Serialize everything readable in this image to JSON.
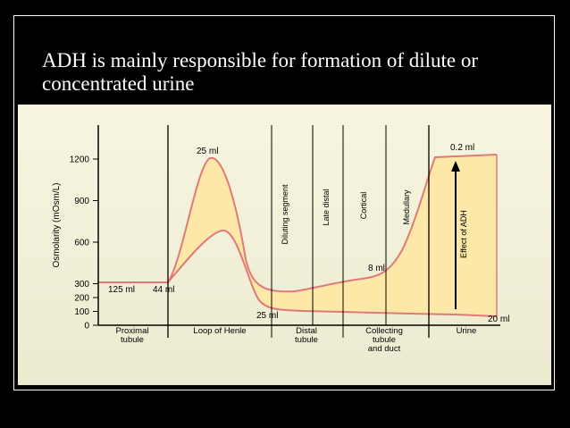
{
  "slide": {
    "title": "ADH is mainly responsible for formation of dilute or concentrated urine"
  },
  "chart_data": {
    "type": "area",
    "ylabel": "Osmolarity (mOsm/L)",
    "ylim": [
      0,
      1400
    ],
    "y_ticks": [
      0,
      100,
      200,
      300,
      600,
      900,
      1200
    ],
    "x_segments": [
      "Proximal tubule",
      "Loop of Henle",
      "Distal tubule",
      "Collecting tubule and duct",
      "Urine"
    ],
    "upper_curve": {
      "description_points": [
        [
          0,
          300
        ],
        [
          1.0,
          300
        ],
        [
          1.5,
          1200
        ],
        [
          2.0,
          320
        ],
        [
          2.6,
          260
        ],
        [
          3.2,
          330
        ],
        [
          3.6,
          400
        ],
        [
          4.0,
          1200
        ],
        [
          4.6,
          1210
        ]
      ]
    },
    "lower_curve": {
      "description_points": [
        [
          0,
          300
        ],
        [
          1.0,
          300
        ],
        [
          1.5,
          700
        ],
        [
          2.0,
          120
        ],
        [
          2.6,
          100
        ],
        [
          3.6,
          90
        ],
        [
          4.6,
          70
        ]
      ]
    },
    "annotations": {
      "vol_125": "125 ml",
      "vol_44": "44 ml",
      "vol_25_top": "25 ml",
      "vol_25_bottom": "25 ml",
      "vol_8": "8 ml",
      "vol_0_2": "0.2 ml",
      "vol_20": "20 ml",
      "diluting": "Diluting segment",
      "late_distal": "Late distal",
      "cortical": "Cortical",
      "medullary": "Medullary",
      "effect_adh": "Effect of ADH"
    },
    "segment_labels": {
      "proximal_1": "Proximal",
      "proximal_2": "tubule",
      "loop": "Loop of Henle",
      "distal_1": "Distal",
      "distal_2": "tubule",
      "collecting_1": "Collecting",
      "collecting_2": "tubule",
      "collecting_3": "and duct",
      "urine": "Urine"
    },
    "colors": {
      "fill": "#fde8a8",
      "stroke": "#e07a78",
      "axis": "#000000"
    }
  }
}
